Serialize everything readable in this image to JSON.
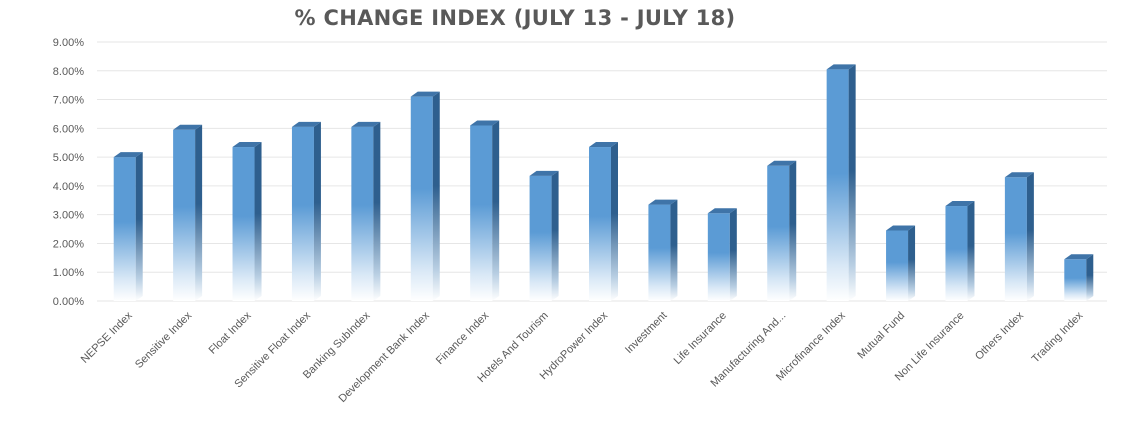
{
  "chart_data": {
    "type": "bar",
    "title": "% CHANGE INDEX (JULY 13 - JULY 18)",
    "xlabel": "",
    "ylabel": "",
    "ylim": [
      0,
      9
    ],
    "yticks": [
      "0.00%",
      "1.00%",
      "2.00%",
      "3.00%",
      "4.00%",
      "5.00%",
      "6.00%",
      "7.00%",
      "8.00%",
      "9.00%"
    ],
    "grid": true,
    "categories": [
      "NEPSE Index",
      "Sensitive Index",
      "Float Index",
      "Sensitive Float Index",
      "Banking SubIndex",
      "Development Bank Index",
      "Finance Index",
      "Hotels And Tourism",
      "HydroPower Index",
      "Investment",
      "Life Insurance",
      "Manufacturing And...",
      "Microfinance Index",
      "Mutual Fund",
      "Non Life Insurance",
      "Others Index",
      "Trading Index"
    ],
    "values": [
      5.0,
      5.95,
      5.35,
      6.05,
      6.05,
      7.1,
      6.1,
      4.35,
      5.35,
      3.35,
      3.05,
      4.7,
      8.05,
      2.45,
      3.3,
      4.3,
      1.45
    ],
    "colors": {
      "bar_top": "#5b9bd5",
      "bar_side": "#2e5f8e",
      "bar_cap": "#3f74a8",
      "grid": "#e6e6e6",
      "text": "#595959"
    }
  }
}
